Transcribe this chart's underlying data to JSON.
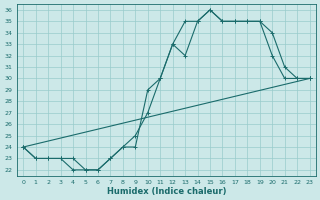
{
  "xlabel": "Humidex (Indice chaleur)",
  "bg_color": "#cce8e8",
  "grid_color": "#99cccc",
  "line_color": "#1a6b6b",
  "xlim": [
    -0.5,
    23.5
  ],
  "ylim": [
    21.5,
    36.5
  ],
  "xticks": [
    0,
    1,
    2,
    3,
    4,
    5,
    6,
    7,
    8,
    9,
    10,
    11,
    12,
    13,
    14,
    15,
    16,
    17,
    18,
    19,
    20,
    21,
    22,
    23
  ],
  "yticks": [
    22,
    23,
    24,
    25,
    26,
    27,
    28,
    29,
    30,
    31,
    32,
    33,
    34,
    35,
    36
  ],
  "line1_x": [
    0,
    1,
    2,
    3,
    4,
    5,
    6,
    7,
    8,
    9,
    10,
    11,
    12,
    13,
    14,
    15,
    16,
    17,
    18,
    19,
    20,
    21,
    22,
    23
  ],
  "line1_y": [
    24,
    23,
    23,
    23,
    23,
    22,
    22,
    23,
    24,
    25,
    27,
    30,
    33,
    35,
    35,
    36,
    35,
    35,
    35,
    35,
    34,
    31,
    30,
    30
  ],
  "line2_x": [
    0,
    1,
    2,
    3,
    4,
    5,
    6,
    7,
    8,
    9,
    10,
    11,
    12,
    13,
    14,
    15,
    16,
    17,
    18,
    19,
    20,
    21,
    22,
    23
  ],
  "line2_y": [
    24,
    23,
    23,
    23,
    22,
    22,
    22,
    23,
    24,
    24,
    29,
    30,
    33,
    32,
    35,
    36,
    35,
    35,
    35,
    35,
    32,
    30,
    30,
    30
  ],
  "line3_x": [
    0,
    23
  ],
  "line3_y": [
    24,
    30
  ]
}
